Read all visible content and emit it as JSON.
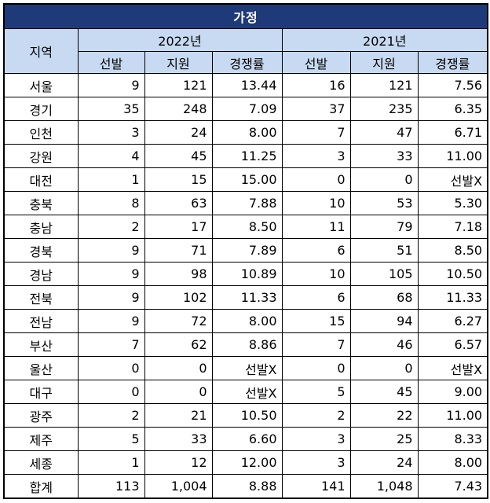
{
  "title": "가정",
  "headers": {
    "region": "지역",
    "year_2022": "2022년",
    "year_2021": "2021년",
    "selected": "선발",
    "applied": "지원",
    "ratio": "경쟁률"
  },
  "rows": [
    {
      "region": "서울",
      "y2022": [
        "9",
        "121",
        "13.44"
      ],
      "y2021": [
        "16",
        "121",
        "7.56"
      ]
    },
    {
      "region": "경기",
      "y2022": [
        "35",
        "248",
        "7.09"
      ],
      "y2021": [
        "37",
        "235",
        "6.35"
      ]
    },
    {
      "region": "인천",
      "y2022": [
        "3",
        "24",
        "8.00"
      ],
      "y2021": [
        "7",
        "47",
        "6.71"
      ]
    },
    {
      "region": "강원",
      "y2022": [
        "4",
        "45",
        "11.25"
      ],
      "y2021": [
        "3",
        "33",
        "11.00"
      ]
    },
    {
      "region": "대전",
      "y2022": [
        "1",
        "15",
        "15.00"
      ],
      "y2021": [
        "0",
        "0",
        "선발X"
      ]
    },
    {
      "region": "충북",
      "y2022": [
        "8",
        "63",
        "7.88"
      ],
      "y2021": [
        "10",
        "53",
        "5.30"
      ]
    },
    {
      "region": "충남",
      "y2022": [
        "2",
        "17",
        "8.50"
      ],
      "y2021": [
        "11",
        "79",
        "7.18"
      ]
    },
    {
      "region": "경북",
      "y2022": [
        "9",
        "71",
        "7.89"
      ],
      "y2021": [
        "6",
        "51",
        "8.50"
      ]
    },
    {
      "region": "경남",
      "y2022": [
        "9",
        "98",
        "10.89"
      ],
      "y2021": [
        "10",
        "105",
        "10.50"
      ]
    },
    {
      "region": "전북",
      "y2022": [
        "9",
        "102",
        "11.33"
      ],
      "y2021": [
        "6",
        "68",
        "11.33"
      ]
    },
    {
      "region": "전남",
      "y2022": [
        "9",
        "72",
        "8.00"
      ],
      "y2021": [
        "15",
        "94",
        "6.27"
      ]
    },
    {
      "region": "부산",
      "y2022": [
        "7",
        "62",
        "8.86"
      ],
      "y2021": [
        "7",
        "46",
        "6.57"
      ]
    },
    {
      "region": "울산",
      "y2022": [
        "0",
        "0",
        "선발X"
      ],
      "y2021": [
        "0",
        "0",
        "선발X"
      ]
    },
    {
      "region": "대구",
      "y2022": [
        "0",
        "0",
        "선발X"
      ],
      "y2021": [
        "5",
        "45",
        "9.00"
      ]
    },
    {
      "region": "광주",
      "y2022": [
        "2",
        "21",
        "10.50"
      ],
      "y2021": [
        "2",
        "22",
        "11.00"
      ]
    },
    {
      "region": "제주",
      "y2022": [
        "5",
        "33",
        "6.60"
      ],
      "y2021": [
        "3",
        "25",
        "8.33"
      ]
    },
    {
      "region": "세종",
      "y2022": [
        "1",
        "12",
        "12.00"
      ],
      "y2021": [
        "3",
        "24",
        "8.00"
      ]
    },
    {
      "region": "합계",
      "y2022": [
        "113",
        "1,004",
        "8.88"
      ],
      "y2021": [
        "141",
        "1,048",
        "7.43"
      ]
    }
  ],
  "colors": {
    "title_bg": "#1f3a78",
    "header_bg": "#c7daf1"
  }
}
